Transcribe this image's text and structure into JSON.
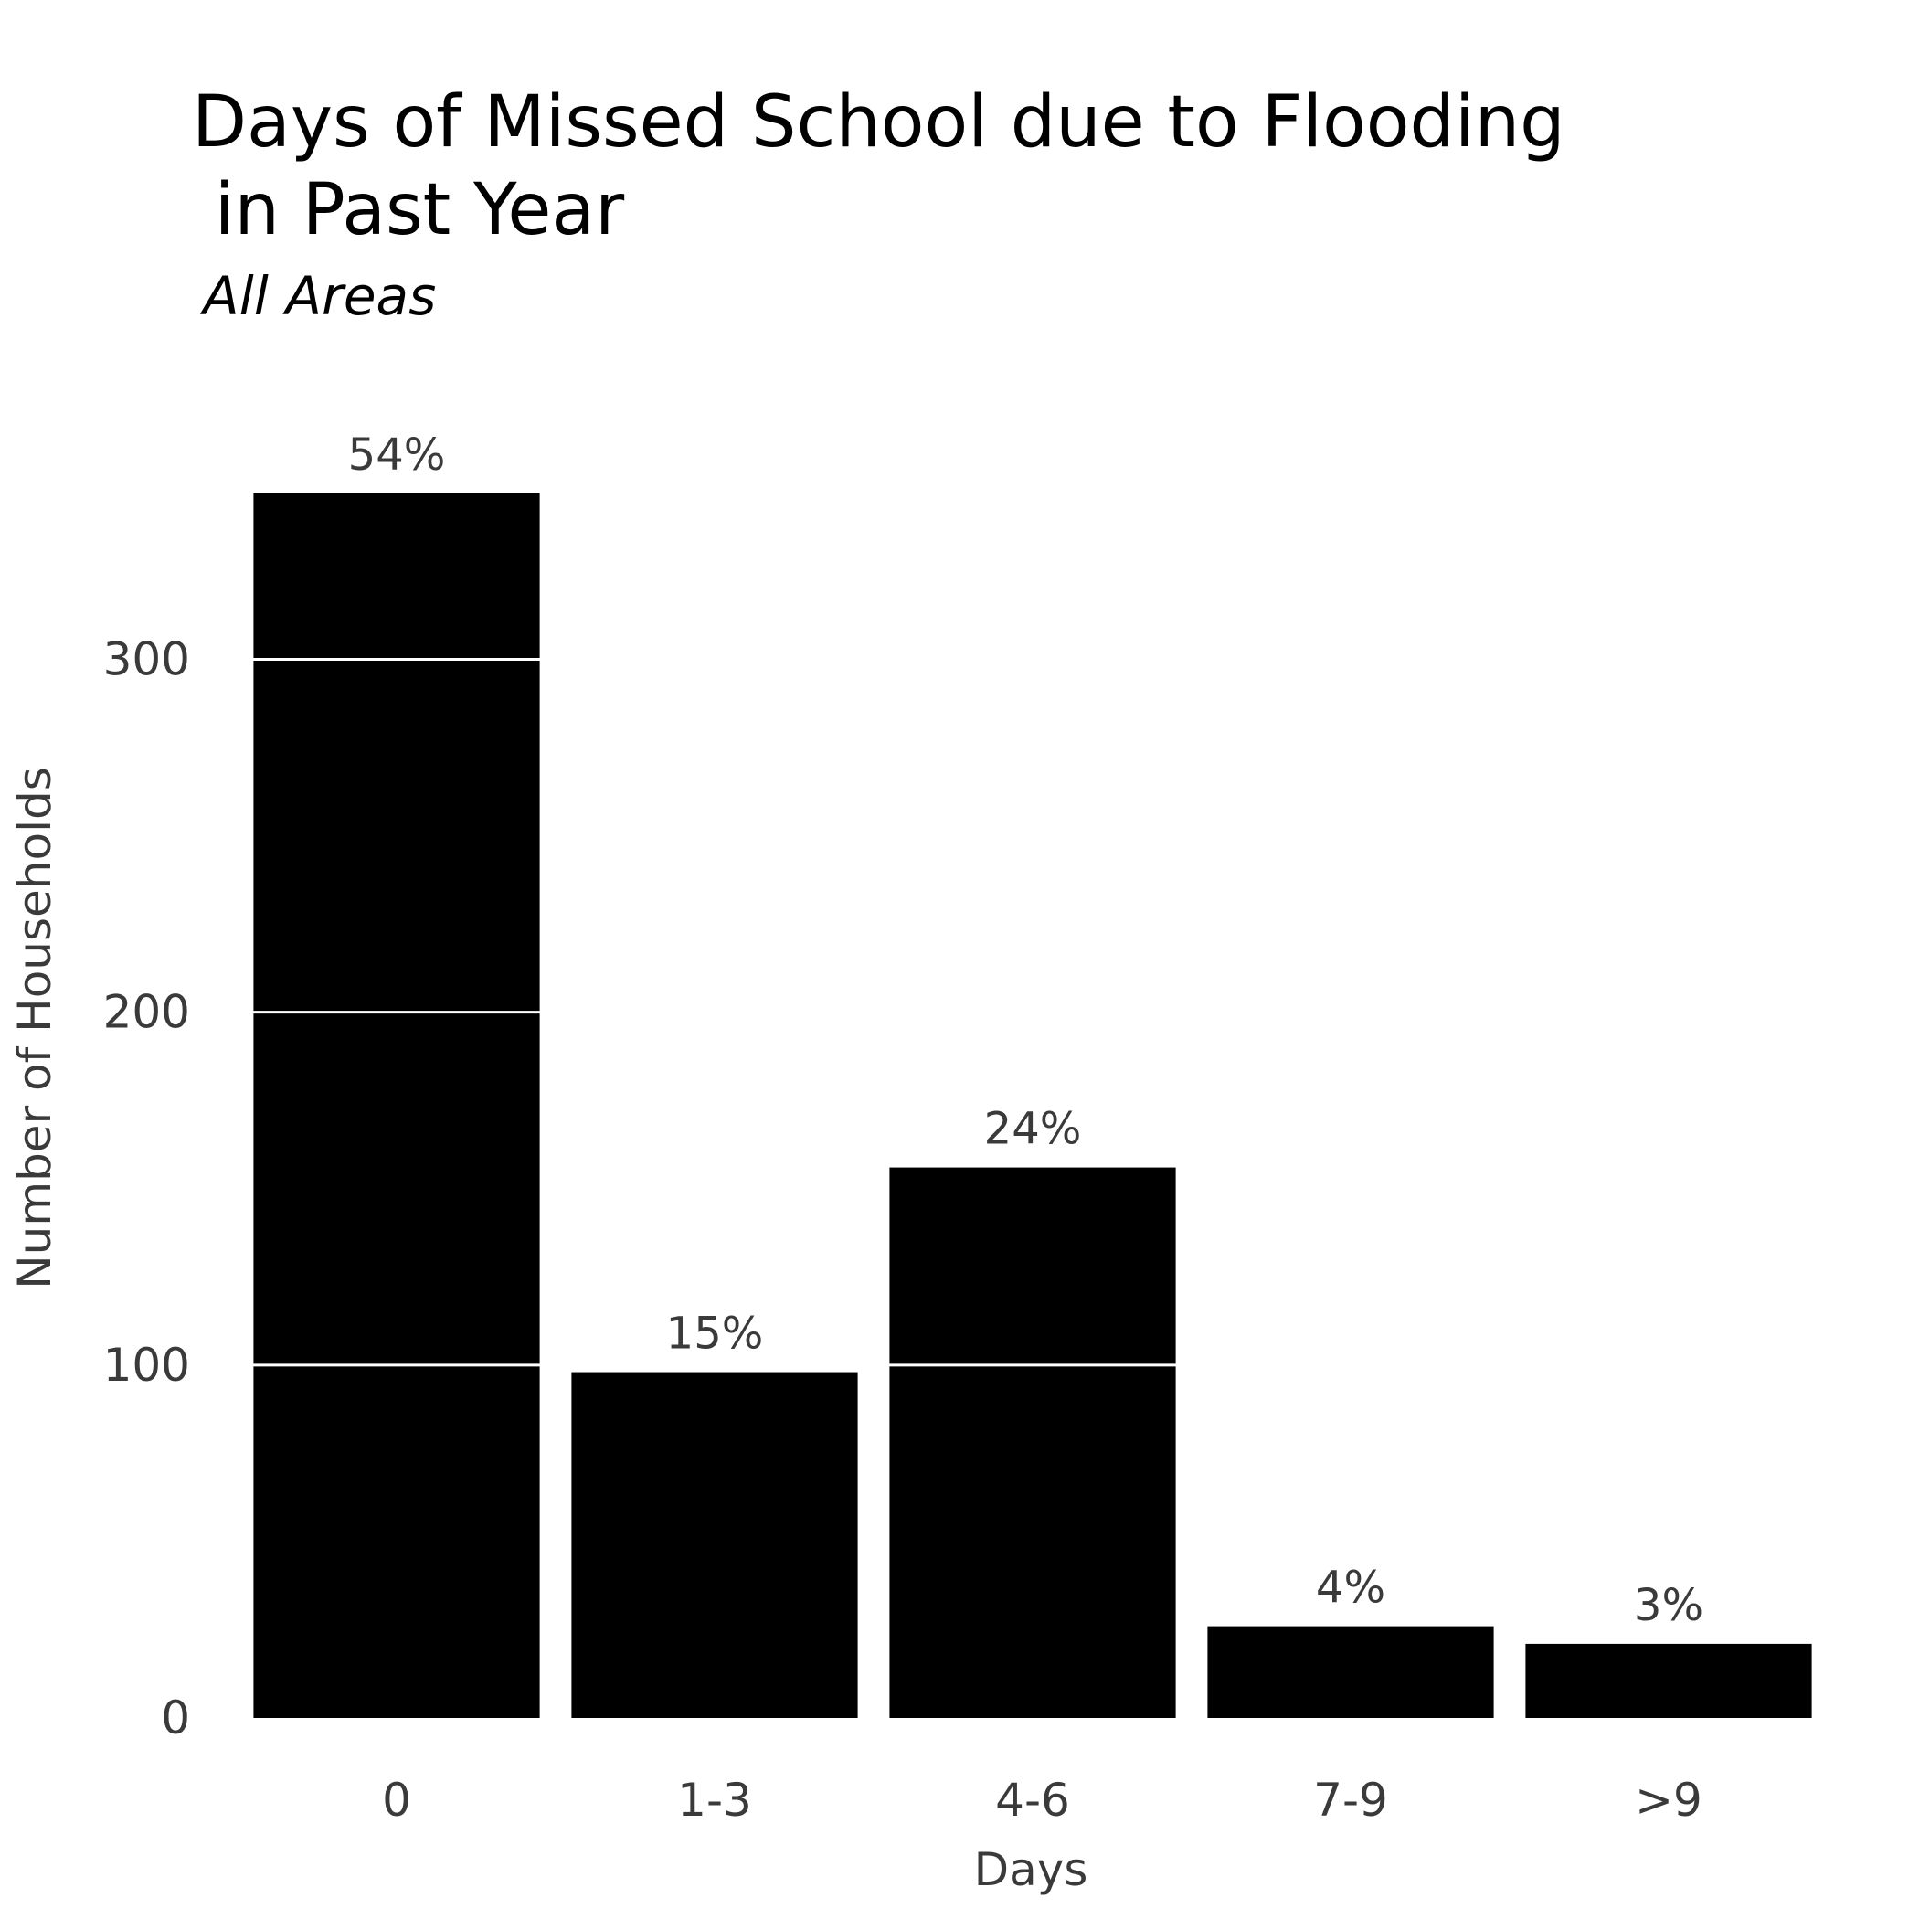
{
  "chart_data": {
    "type": "bar",
    "title": "Days of Missed School due to Flooding\n in Past Year",
    "subtitle": "All Areas",
    "xlabel": "Days",
    "ylabel": "Number of Households",
    "categories": [
      "0",
      "1-3",
      "4-6",
      "7-9",
      ">9"
    ],
    "values": [
      347,
      98,
      156,
      26,
      21
    ],
    "data_labels": [
      "54%",
      "15%",
      "24%",
      "4%",
      "3%"
    ],
    "yticks": [
      0,
      100,
      200,
      300
    ],
    "ytick_labels": [
      "0",
      "100",
      "200",
      "300"
    ],
    "ylim": [
      0,
      347
    ],
    "grid": "horizontal",
    "legend": "none",
    "colors": {
      "bar": "#000000",
      "gridline": "#ffffff",
      "text": "#3a3a3a",
      "title": "#000000",
      "background": "#ffffff"
    }
  }
}
